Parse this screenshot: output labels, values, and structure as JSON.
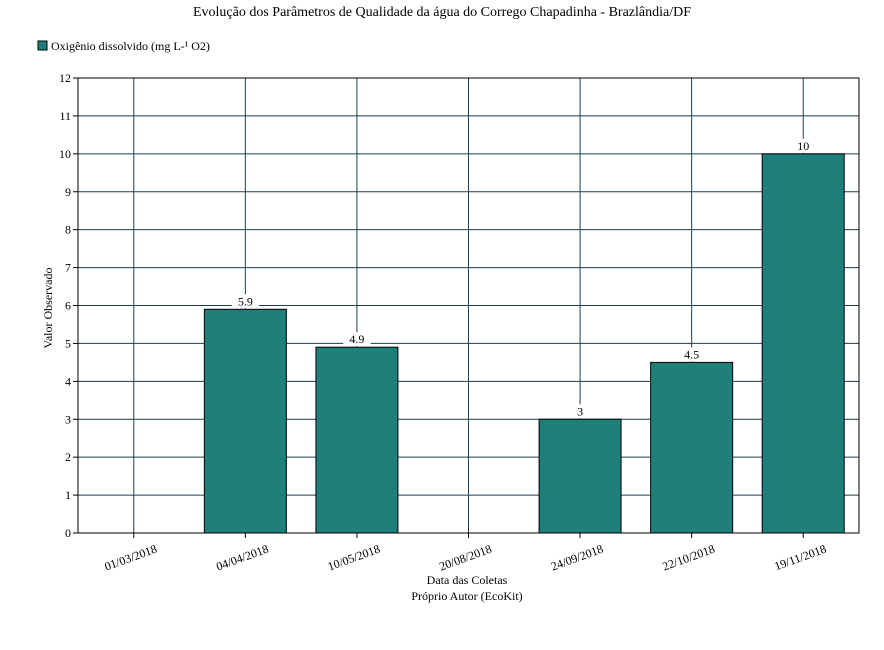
{
  "chart_data": {
    "type": "bar",
    "title": "Evolução dos Parâmetros de Qualidade da água do Corrego Chapadinha - Brazlândia/DF",
    "xlabel": "Data das Coletas",
    "xlabel_sub": "Próprio Autor (EcoKit)",
    "ylabel": "Valor Observado",
    "ylim": [
      0,
      12
    ],
    "yticks": [
      0,
      1,
      2,
      3,
      4,
      5,
      6,
      7,
      8,
      9,
      10,
      11,
      12
    ],
    "grid": true,
    "legend_position": "top-left",
    "categories": [
      "01/03/2018",
      "04/04/2018",
      "10/05/2018",
      "20/08/2018",
      "24/09/2018",
      "22/10/2018",
      "19/11/2018"
    ],
    "series": [
      {
        "name": "Oxigênio dissolvido (mg L-¹ O2)",
        "color": "#1f7f7a",
        "values": [
          null,
          5.9,
          4.9,
          null,
          3,
          4.5,
          10
        ],
        "labels": [
          "",
          "5.9",
          "4.9",
          "",
          "3",
          "4.5",
          "10"
        ]
      }
    ]
  }
}
